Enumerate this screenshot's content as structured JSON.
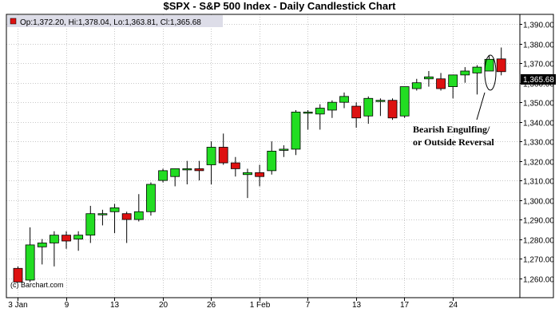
{
  "chart_data": {
    "type": "candlestick",
    "title": "$SPX - S&P 500 Index - Daily Candlestick Chart",
    "legend_text": "Op:1,372.20, Hi:1,378.04, Lo:1,363.81, Cl:1,365.68",
    "credit": "(c) Barchart.com",
    "last_value_label": "1,365.68",
    "annotation_lines": [
      "Bearish Engulfing/",
      "or Outside Reversal"
    ],
    "ylim": [
      1250,
      1395
    ],
    "yticks": [
      1260,
      1270,
      1280,
      1290,
      1300,
      1310,
      1320,
      1330,
      1340,
      1350,
      1360,
      1370,
      1380,
      1390
    ],
    "ytick_labels": [
      "1,260.00",
      "1,270.00",
      "1,280.00",
      "1,290.00",
      "1,300.00",
      "1,310.00",
      "1,320.00",
      "1,330.00",
      "1,340.00",
      "1,350.00",
      "1,360.00",
      "1,370.00",
      "1,380.00",
      "1,390.00"
    ],
    "xticks": [
      {
        "index": 0,
        "label": "3 Jan"
      },
      {
        "index": 4,
        "label": "9"
      },
      {
        "index": 8,
        "label": "13"
      },
      {
        "index": 12,
        "label": "20"
      },
      {
        "index": 16,
        "label": "26"
      },
      {
        "index": 20,
        "label": "1 Feb"
      },
      {
        "index": 24,
        "label": "7"
      },
      {
        "index": 28,
        "label": "13"
      },
      {
        "index": 32,
        "label": "17"
      },
      {
        "index": 36,
        "label": "24"
      }
    ],
    "grid": true,
    "colors": {
      "up": "#22dd22",
      "down": "#dd1111",
      "grid": "#c8c8c8",
      "legend_bg": "#dddde8",
      "label_bg": "#000000"
    },
    "candles": [
      {
        "o": 1265,
        "h": 1266,
        "l": 1258,
        "c": 1258
      },
      {
        "o": 1259,
        "h": 1286,
        "l": 1258,
        "c": 1277
      },
      {
        "o": 1276,
        "h": 1280,
        "l": 1267,
        "c": 1278
      },
      {
        "o": 1278,
        "h": 1284,
        "l": 1266,
        "c": 1282
      },
      {
        "o": 1282,
        "h": 1284,
        "l": 1275,
        "c": 1279
      },
      {
        "o": 1280,
        "h": 1284,
        "l": 1274,
        "c": 1282
      },
      {
        "o": 1282,
        "h": 1297,
        "l": 1278,
        "c": 1293
      },
      {
        "o": 1293,
        "h": 1295,
        "l": 1287,
        "c": 1293
      },
      {
        "o": 1294,
        "h": 1298,
        "l": 1283,
        "c": 1296
      },
      {
        "o": 1293,
        "h": 1294,
        "l": 1278,
        "c": 1290
      },
      {
        "o": 1290,
        "h": 1303,
        "l": 1289,
        "c": 1294
      },
      {
        "o": 1294,
        "h": 1309,
        "l": 1292,
        "c": 1308
      },
      {
        "o": 1310,
        "h": 1316,
        "l": 1309,
        "c": 1315
      },
      {
        "o": 1312,
        "h": 1316,
        "l": 1307,
        "c": 1316
      },
      {
        "o": 1316,
        "h": 1320,
        "l": 1308,
        "c": 1316
      },
      {
        "o": 1316,
        "h": 1320,
        "l": 1310,
        "c": 1315
      },
      {
        "o": 1318,
        "h": 1330,
        "l": 1308,
        "c": 1327
      },
      {
        "o": 1327,
        "h": 1334,
        "l": 1318,
        "c": 1319
      },
      {
        "o": 1319,
        "h": 1322,
        "l": 1312,
        "c": 1316
      },
      {
        "o": 1313,
        "h": 1316,
        "l": 1301,
        "c": 1314
      },
      {
        "o": 1314,
        "h": 1318,
        "l": 1307,
        "c": 1312
      },
      {
        "o": 1315,
        "h": 1330,
        "l": 1313,
        "c": 1325
      },
      {
        "o": 1326,
        "h": 1328,
        "l": 1322,
        "c": 1326
      },
      {
        "o": 1326,
        "h": 1346,
        "l": 1323,
        "c": 1345
      },
      {
        "o": 1345,
        "h": 1346,
        "l": 1336,
        "c": 1345
      },
      {
        "o": 1344,
        "h": 1349,
        "l": 1336,
        "c": 1347
      },
      {
        "o": 1346,
        "h": 1351,
        "l": 1342,
        "c": 1350
      },
      {
        "o": 1350,
        "h": 1355,
        "l": 1347,
        "c": 1353
      },
      {
        "o": 1348,
        "h": 1350,
        "l": 1337,
        "c": 1342
      },
      {
        "o": 1343,
        "h": 1353,
        "l": 1339,
        "c": 1352
      },
      {
        "o": 1351,
        "h": 1352,
        "l": 1343,
        "c": 1351
      },
      {
        "o": 1351,
        "h": 1352,
        "l": 1341,
        "c": 1342
      },
      {
        "o": 1343,
        "h": 1358,
        "l": 1342,
        "c": 1358
      },
      {
        "o": 1357,
        "h": 1362,
        "l": 1356,
        "c": 1360
      },
      {
        "o": 1362,
        "h": 1366,
        "l": 1358,
        "c": 1363
      },
      {
        "o": 1362,
        "h": 1365,
        "l": 1356,
        "c": 1357
      },
      {
        "o": 1358,
        "h": 1363,
        "l": 1352,
        "c": 1364
      },
      {
        "o": 1364,
        "h": 1368,
        "l": 1360,
        "c": 1366
      },
      {
        "o": 1365,
        "h": 1369,
        "l": 1354,
        "c": 1368
      },
      {
        "o": 1366,
        "h": 1374,
        "l": 1366,
        "c": 1372
      },
      {
        "o": 1372.2,
        "h": 1378.04,
        "l": 1363.81,
        "c": 1365.68
      }
    ]
  }
}
